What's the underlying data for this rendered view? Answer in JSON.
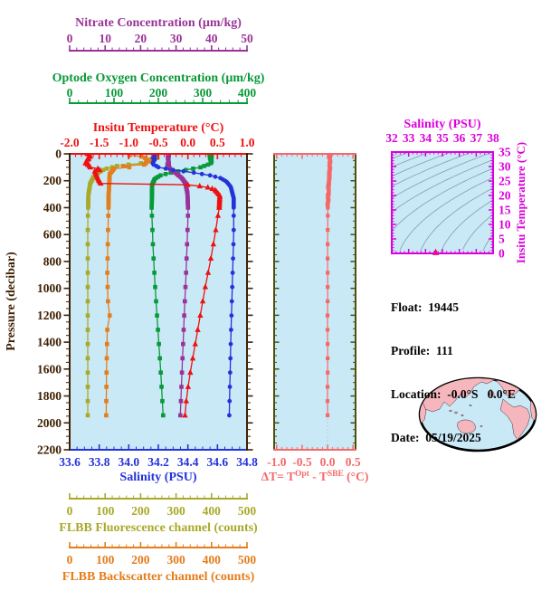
{
  "colors": {
    "plot_bg": "#c9e9f7",
    "frame_brown": "#3f2104",
    "dt_frame_olive": "#4e4f08",
    "contour_gray": "#8fa3b0",
    "map_land": "#f5b7bd",
    "map_outline": "#000000",
    "zero_line": "#b9c7cf"
  },
  "float_info": {
    "lines": [
      "Float:  19445",
      "Profile:  111",
      "Location:  -0.0°S   0.0°E",
      "Date:  05/19/2025"
    ]
  },
  "chart_data": [
    {
      "id": "profile-plot",
      "type": "line",
      "ylabel": "Pressure (decibar)",
      "ylim": [
        0,
        2200
      ],
      "yticks": [
        "0",
        "200",
        "400",
        "600",
        "800",
        "1000",
        "1200",
        "1400",
        "1600",
        "1800",
        "2000",
        "2200"
      ],
      "y_minor_step": 50,
      "axes": [
        {
          "id": "nitrate",
          "title": "Nitrate Concentration (µm/kg)",
          "color": "#993399",
          "lim": [
            0,
            50
          ],
          "ticks": [
            "0",
            "10",
            "20",
            "30",
            "40",
            "50"
          ],
          "minor": 2
        },
        {
          "id": "oxygen",
          "title": "Optode Oxygen Concentration (µm/kg)",
          "color": "#089938",
          "lim": [
            0,
            400
          ],
          "ticks": [
            "0",
            "100",
            "200",
            "300",
            "400"
          ],
          "minor": 20
        },
        {
          "id": "temperature",
          "title": "Insitu Temperature (°C)",
          "color": "#ee1111",
          "lim": [
            -2,
            1
          ],
          "ticks": [
            "-2.0",
            "-1.5",
            "-1.0",
            "-0.5",
            "0.0",
            "0.5",
            "1.0"
          ],
          "minor": 0.1
        },
        {
          "id": "salinity",
          "title": "Salinity (PSU)",
          "color": "#2433d9",
          "lim": [
            33.6,
            34.8
          ],
          "ticks": [
            "33.6",
            "33.8",
            "34.0",
            "34.2",
            "34.4",
            "34.6",
            "34.8"
          ],
          "minor": 0.05
        },
        {
          "id": "fluorescence",
          "title": "FLBB Fluorescence channel (counts)",
          "color": "#a9a92a",
          "lim": [
            0,
            500
          ],
          "ticks": [
            "0",
            "100",
            "200",
            "300",
            "400",
            "500"
          ],
          "minor": 20
        },
        {
          "id": "backscatter",
          "title": "FLBB Backscatter channel (counts)",
          "color": "#e47d1c",
          "lim": [
            0,
            500
          ],
          "ticks": [
            "0",
            "100",
            "200",
            "300",
            "400",
            "500"
          ],
          "minor": 20
        }
      ],
      "series": [
        {
          "axis": "fluorescence",
          "marker": "square",
          "noise": 9,
          "noise_above": 100,
          "points": [
            [
              0,
              242
            ],
            [
              40,
              238
            ],
            [
              60,
              222
            ],
            [
              75,
              182
            ],
            [
              90,
              140
            ],
            [
              105,
              110
            ],
            [
              122,
              92
            ],
            [
              142,
              80
            ],
            [
              170,
              68
            ],
            [
              220,
              58
            ],
            [
              300,
              53
            ],
            [
              500,
              51
            ],
            [
              1950,
              51
            ]
          ]
        },
        {
          "axis": "backscatter",
          "marker": "square",
          "noise": 22,
          "noise_above": 115,
          "points": [
            [
              0,
              175
            ],
            [
              25,
              205
            ],
            [
              45,
              225
            ],
            [
              65,
              215
            ],
            [
              85,
              180
            ],
            [
              100,
              148
            ],
            [
              120,
              122
            ],
            [
              150,
              113
            ],
            [
              300,
              110
            ],
            [
              600,
              108
            ],
            [
              900,
              106
            ],
            [
              1100,
              108
            ],
            [
              1200,
              113
            ],
            [
              1300,
              106
            ],
            [
              1600,
              104
            ],
            [
              1950,
              103
            ]
          ]
        },
        {
          "axis": "oxygen",
          "marker": "square",
          "noise": 3,
          "noise_above": 80,
          "points": [
            [
              0,
              318
            ],
            [
              60,
              318
            ],
            [
              80,
              312
            ],
            [
              100,
              295
            ],
            [
              120,
              262
            ],
            [
              140,
              228
            ],
            [
              160,
              205
            ],
            [
              185,
              192
            ],
            [
              230,
              186
            ],
            [
              400,
              185
            ],
            [
              700,
              188
            ],
            [
              1000,
              193
            ],
            [
              1300,
              199
            ],
            [
              1600,
              205
            ],
            [
              1950,
              211
            ]
          ]
        },
        {
          "axis": "nitrate",
          "marker": "square",
          "noise": 0.25,
          "noise_above": 100,
          "points": [
            [
              0,
              27.8
            ],
            [
              90,
              27.8
            ],
            [
              115,
              28.4
            ],
            [
              145,
              30
            ],
            [
              180,
              31.6
            ],
            [
              215,
              32.6
            ],
            [
              290,
              33.2
            ],
            [
              420,
              33.4
            ],
            [
              600,
              33.2
            ],
            [
              900,
              32.8
            ],
            [
              1200,
              32.3
            ],
            [
              1600,
              31.7
            ],
            [
              1950,
              31.2
            ]
          ]
        },
        {
          "axis": "salinity",
          "marker": "circle",
          "noise": 0.008,
          "noise_above": 95,
          "points": [
            [
              0,
              34.17
            ],
            [
              85,
              34.17
            ],
            [
              100,
              34.2
            ],
            [
              120,
              34.3
            ],
            [
              140,
              34.44
            ],
            [
              160,
              34.55
            ],
            [
              180,
              34.62
            ],
            [
              205,
              34.66
            ],
            [
              245,
              34.69
            ],
            [
              330,
              34.71
            ],
            [
              600,
              34.71
            ],
            [
              1000,
              34.7
            ],
            [
              1400,
              34.69
            ],
            [
              1950,
              34.68
            ]
          ]
        },
        {
          "axis": "temperature",
          "marker": "triangle",
          "noise": 0.05,
          "noise_above": 135,
          "points": [
            [
              0,
              -1.66
            ],
            [
              50,
              -1.7
            ],
            [
              90,
              -1.68
            ],
            [
              115,
              -1.5
            ],
            [
              140,
              -1.56
            ],
            [
              175,
              -1.53
            ],
            [
              205,
              -1.5
            ],
            [
              222,
              -1.47
            ],
            [
              230,
              0.0
            ],
            [
              245,
              0.3
            ],
            [
              265,
              0.45
            ],
            [
              310,
              0.54
            ],
            [
              400,
              0.53
            ],
            [
              600,
              0.46
            ],
            [
              800,
              0.38
            ],
            [
              1000,
              0.29
            ],
            [
              1200,
              0.21
            ],
            [
              1400,
              0.13
            ],
            [
              1600,
              0.05
            ],
            [
              1800,
              -0.02
            ],
            [
              1950,
              -0.05
            ]
          ]
        }
      ]
    },
    {
      "id": "dt-plot",
      "type": "line",
      "xlim": [
        -1.05,
        0.55
      ],
      "xticks": [
        "-1.0",
        "-0.5",
        "0.0",
        "0.5"
      ],
      "x_minor_step": 0.1,
      "color": "#f56868",
      "title_parts": {
        "prefix": "ΔT= T",
        "sup1": "Opt",
        "mid": " - T",
        "sup2": "SBE",
        "suffix": " (°C)"
      },
      "series": [
        {
          "marker": "square",
          "noise": 0.012,
          "noise_above": 380,
          "points": [
            [
              0,
              0.05
            ],
            [
              60,
              0.05
            ],
            [
              120,
              0.04
            ],
            [
              180,
              0.03
            ],
            [
              250,
              0.02
            ],
            [
              330,
              0.01
            ],
            [
              400,
              0.005
            ],
            [
              600,
              0.002
            ],
            [
              800,
              0.0
            ],
            [
              1000,
              0.002
            ],
            [
              1200,
              -0.002
            ],
            [
              1400,
              0.0
            ],
            [
              1600,
              0.002
            ],
            [
              1800,
              -0.002
            ],
            [
              1950,
              0.0
            ]
          ]
        }
      ]
    },
    {
      "id": "ts-plot",
      "type": "scatter",
      "title": "Salinity (PSU)",
      "right_label": "Insitu Temperature (°C)",
      "xlim": [
        32,
        38
      ],
      "xticks": [
        "32",
        "33",
        "34",
        "35",
        "36",
        "37",
        "38"
      ],
      "x_minor_step": 0.25,
      "ylim": [
        0,
        35
      ],
      "yticks": [
        "0",
        "5",
        "10",
        "15",
        "20",
        "25",
        "30",
        "35"
      ],
      "y_minor_step": 1,
      "color": "#dd00dd",
      "contour_levels": [
        17,
        18,
        19,
        20,
        21,
        22,
        23,
        24,
        25,
        26,
        27,
        28,
        29,
        30
      ],
      "point": {
        "salinity": 34.6,
        "temperature": 0.3,
        "color": "#e8103c"
      }
    }
  ]
}
